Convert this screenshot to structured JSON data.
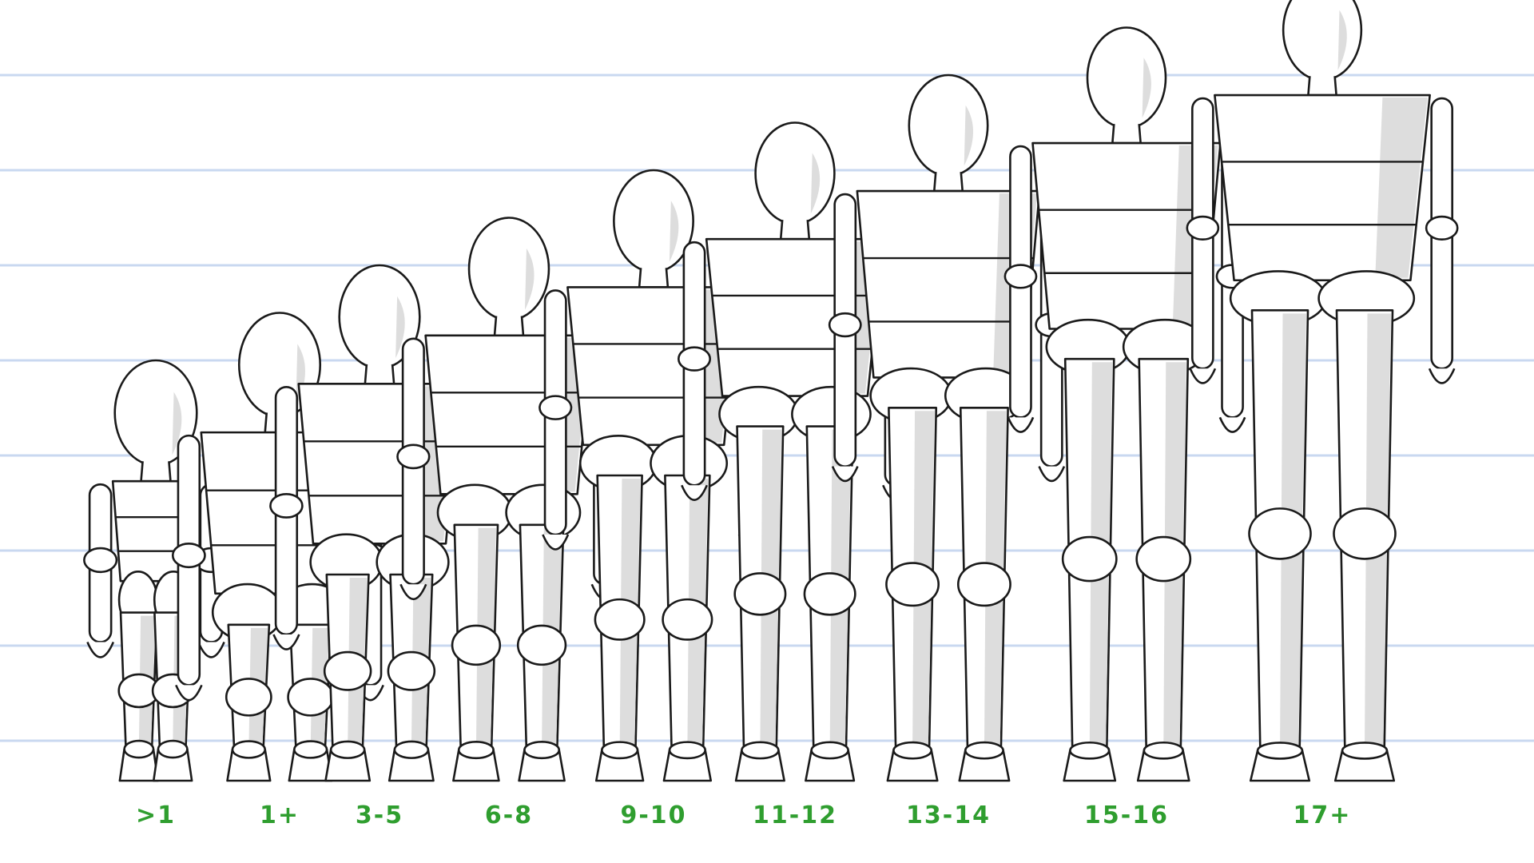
{
  "diagram": {
    "colors": {
      "guide_line": "#c9d8f0",
      "outline": "#1a1a1a",
      "shading": "#dddddd",
      "label": "#2f9e2f",
      "background": "#ffffff"
    },
    "figures": [
      {
        "label": ">1",
        "head_units": 4.0,
        "build": "infant"
      },
      {
        "label": "1+",
        "head_units": 4.5,
        "build": "toddler"
      },
      {
        "label": "3-5",
        "head_units": 5.0,
        "build": "child"
      },
      {
        "label": "6-8",
        "head_units": 5.5,
        "build": "child"
      },
      {
        "label": "9-10",
        "head_units": 6.0,
        "build": "child"
      },
      {
        "label": "11-12",
        "head_units": 6.5,
        "build": "child"
      },
      {
        "label": "13-14",
        "head_units": 7.0,
        "build": "teen"
      },
      {
        "label": "15-16",
        "head_units": 7.5,
        "build": "teen"
      },
      {
        "label": "17+",
        "head_units": 8.0,
        "build": "adult"
      }
    ]
  }
}
